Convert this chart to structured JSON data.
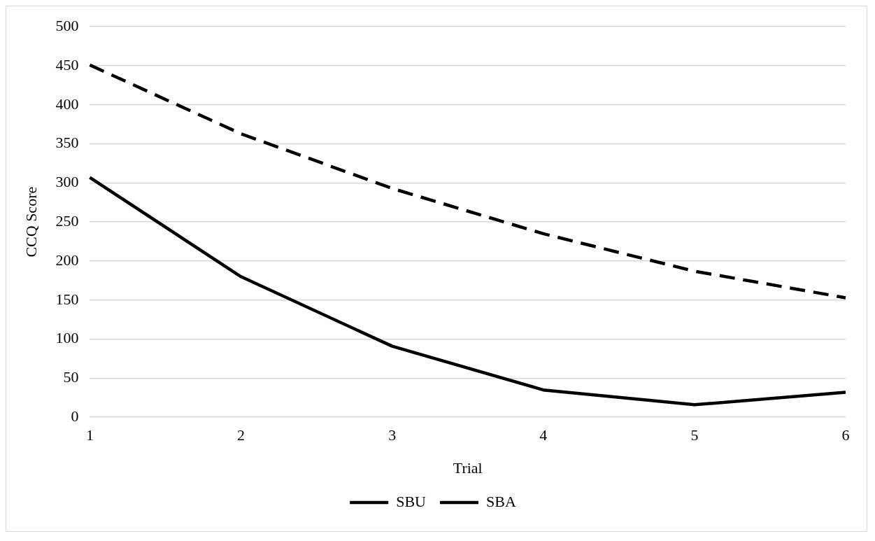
{
  "chart_data": {
    "type": "line",
    "xlabel": "Trial",
    "ylabel": "CCQ Score",
    "categories": [
      "1",
      "2",
      "3",
      "4",
      "5",
      "6"
    ],
    "series": [
      {
        "name": "SBU",
        "color": "#000000",
        "values": [
          307,
          180,
          91,
          35,
          16,
          32
        ],
        "line_style": "solid"
      },
      {
        "name": "SBA",
        "color": "#000000",
        "values": [
          451,
          363,
          293,
          235,
          187,
          153
        ],
        "line_style": "dashed"
      }
    ],
    "ylim": [
      0,
      500
    ],
    "yticks": [
      0,
      50,
      100,
      150,
      200,
      250,
      300,
      350,
      400,
      450,
      500
    ],
    "grid": "y",
    "legend": "bottom",
    "marker": "none"
  }
}
